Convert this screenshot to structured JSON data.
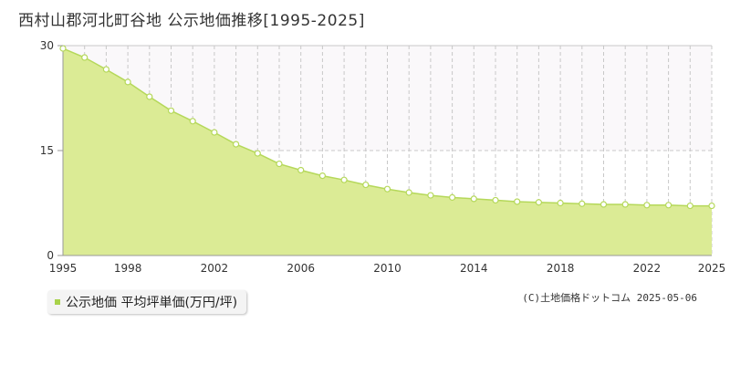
{
  "title": "西村山郡河北町谷地 公示地価推移[1995-2025]",
  "legend": {
    "label": "公示地価 平均坪単価(万円/坪)"
  },
  "copyright": "(C)土地価格ドットコム 2025-05-06",
  "colors": {
    "area_fill": "#dbeb95",
    "line": "#b5d85a",
    "point_fill": "#ffffff",
    "upper_band": "#faf8fa",
    "grid": "#c8c8c8",
    "legend_marker": "#a8d24a"
  },
  "chart_data": {
    "type": "area",
    "title": "西村山郡河北町谷地 公示地価推移[1995-2025]",
    "xlabel": "",
    "ylabel": "",
    "ylim": [
      0,
      30
    ],
    "yticks": [
      0,
      15,
      30
    ],
    "xlim": [
      1995,
      2025
    ],
    "xticks": [
      1995,
      1998,
      2002,
      2006,
      2010,
      2014,
      2018,
      2022,
      2025
    ],
    "grid": true,
    "legend_position": "bottom-left",
    "series": [
      {
        "name": "公示地価 平均坪単価(万円/坪)",
        "x": [
          1995,
          1996,
          1997,
          1998,
          1999,
          2000,
          2001,
          2002,
          2003,
          2004,
          2005,
          2006,
          2007,
          2008,
          2009,
          2010,
          2011,
          2012,
          2013,
          2014,
          2015,
          2016,
          2017,
          2018,
          2019,
          2020,
          2021,
          2022,
          2023,
          2024,
          2025
        ],
        "values": [
          29.6,
          28.3,
          26.6,
          24.8,
          22.7,
          20.7,
          19.2,
          17.6,
          15.9,
          14.6,
          13.1,
          12.2,
          11.4,
          10.8,
          10.1,
          9.5,
          9.0,
          8.6,
          8.3,
          8.1,
          7.9,
          7.7,
          7.6,
          7.5,
          7.4,
          7.3,
          7.3,
          7.2,
          7.2,
          7.1,
          7.1
        ]
      }
    ]
  }
}
